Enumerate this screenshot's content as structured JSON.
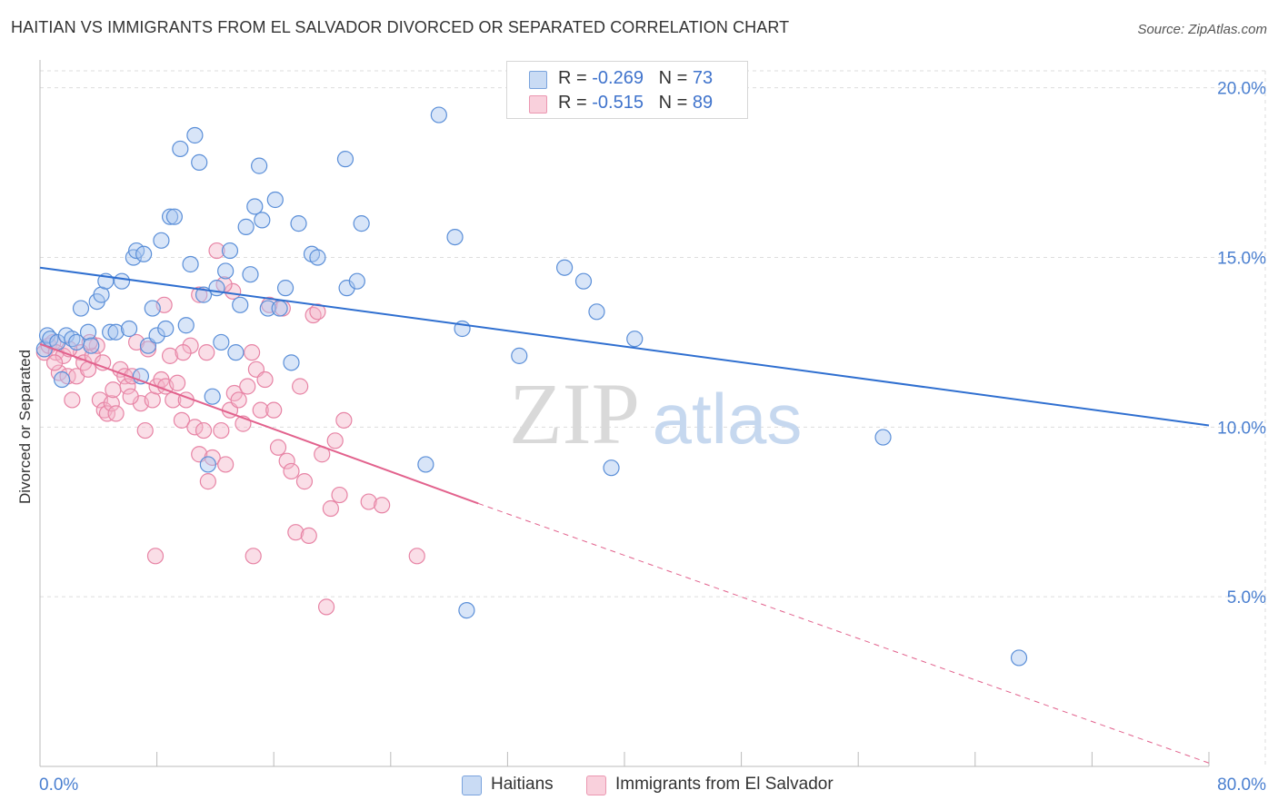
{
  "title": "HAITIAN VS IMMIGRANTS FROM EL SALVADOR DIVORCED OR SEPARATED CORRELATION CHART",
  "source": "Source: ZipAtlas.com",
  "watermark": {
    "zip": "ZIP",
    "atlas": "atlas"
  },
  "legend": {
    "rows": [
      {
        "r_label": "R = ",
        "r_value": "-0.269",
        "n_label": "N = ",
        "n_value": "73",
        "color": "#a9c6ef"
      },
      {
        "r_label": "R = ",
        "r_value": "-0.515",
        "n_label": "N = ",
        "n_value": "89",
        "color": "#f5b6c9"
      }
    ]
  },
  "colors": {
    "haitians_fill": "#a9c6ef",
    "haitians_stroke": "#5b8fd8",
    "haitians_line": "#2f6fd0",
    "elsalvador_fill": "#f5b6c9",
    "elsalvador_stroke": "#e784a5",
    "elsalvador_line": "#e2628d",
    "axis_tick_text": "#4a7fd0",
    "grid": "#dddddd"
  },
  "chart_data": {
    "type": "scatter",
    "title": "HAITIAN VS IMMIGRANTS FROM EL SALVADOR DIVORCED OR SEPARATED CORRELATION CHART",
    "xlabel": "",
    "ylabel": "Divorced or Separated",
    "xlim": [
      0,
      80
    ],
    "ylim": [
      0,
      20.5
    ],
    "x_tick_labels": [
      "0.0%",
      "80.0%"
    ],
    "y_ticks": [
      5,
      10,
      15,
      20
    ],
    "y_tick_labels": [
      "5.0%",
      "10.0%",
      "15.0%",
      "20.0%"
    ],
    "grid": true,
    "legend_placement": "top-center",
    "series": [
      {
        "name": "Haitians",
        "r": -0.269,
        "n": 73,
        "trend": {
          "x": [
            0,
            80
          ],
          "y": [
            14.7,
            10.05
          ]
        },
        "points": [
          [
            0.3,
            12.3
          ],
          [
            0.5,
            12.7
          ],
          [
            0.7,
            12.6
          ],
          [
            1.2,
            12.5
          ],
          [
            1.5,
            11.4
          ],
          [
            1.8,
            12.7
          ],
          [
            2.2,
            12.6
          ],
          [
            2.5,
            12.5
          ],
          [
            2.8,
            13.5
          ],
          [
            3.3,
            12.8
          ],
          [
            3.5,
            12.4
          ],
          [
            3.9,
            13.7
          ],
          [
            4.2,
            13.9
          ],
          [
            4.5,
            14.3
          ],
          [
            4.8,
            12.8
          ],
          [
            5.2,
            12.8
          ],
          [
            5.6,
            14.3
          ],
          [
            6.1,
            12.9
          ],
          [
            6.4,
            15.0
          ],
          [
            6.6,
            15.2
          ],
          [
            6.9,
            11.5
          ],
          [
            7.1,
            15.1
          ],
          [
            7.4,
            12.4
          ],
          [
            7.7,
            13.5
          ],
          [
            8.0,
            12.7
          ],
          [
            8.3,
            15.5
          ],
          [
            8.6,
            12.9
          ],
          [
            8.9,
            16.2
          ],
          [
            9.2,
            16.2
          ],
          [
            9.6,
            18.2
          ],
          [
            10.0,
            13.0
          ],
          [
            10.3,
            14.8
          ],
          [
            10.6,
            18.6
          ],
          [
            10.9,
            17.8
          ],
          [
            11.2,
            13.9
          ],
          [
            11.5,
            8.9
          ],
          [
            11.8,
            10.9
          ],
          [
            12.1,
            14.1
          ],
          [
            12.4,
            12.5
          ],
          [
            12.7,
            14.6
          ],
          [
            13.0,
            15.2
          ],
          [
            13.4,
            12.2
          ],
          [
            13.7,
            13.6
          ],
          [
            14.1,
            15.9
          ],
          [
            14.4,
            14.5
          ],
          [
            14.7,
            16.5
          ],
          [
            15.0,
            17.7
          ],
          [
            15.2,
            16.1
          ],
          [
            15.6,
            13.5
          ],
          [
            16.1,
            16.7
          ],
          [
            16.4,
            13.5
          ],
          [
            16.8,
            14.1
          ],
          [
            17.2,
            11.9
          ],
          [
            17.7,
            16.0
          ],
          [
            18.6,
            15.1
          ],
          [
            19.0,
            15.0
          ],
          [
            21.0,
            14.1
          ],
          [
            21.7,
            14.3
          ],
          [
            20.9,
            17.9
          ],
          [
            22.0,
            16.0
          ],
          [
            26.4,
            8.9
          ],
          [
            27.3,
            19.2
          ],
          [
            28.4,
            15.6
          ],
          [
            28.9,
            12.9
          ],
          [
            29.2,
            4.6
          ],
          [
            32.8,
            12.1
          ],
          [
            35.9,
            14.7
          ],
          [
            37.2,
            14.3
          ],
          [
            38.1,
            13.4
          ],
          [
            39.1,
            8.8
          ],
          [
            40.7,
            12.6
          ],
          [
            57.7,
            9.7
          ],
          [
            67.0,
            3.2
          ]
        ]
      },
      {
        "name": "Immigrants from El Salvador",
        "r": -0.515,
        "n": 89,
        "trend": {
          "x": [
            0,
            30.0
          ],
          "y": [
            12.45,
            7.75
          ]
        },
        "trend_dashed": {
          "x": [
            30.0,
            80
          ],
          "y": [
            7.75,
            0.1
          ]
        },
        "points": [
          [
            0.3,
            12.2
          ],
          [
            0.6,
            12.4
          ],
          [
            0.9,
            12.5
          ],
          [
            1.1,
            12.2
          ],
          [
            1.3,
            11.6
          ],
          [
            1.6,
            12.1
          ],
          [
            1.9,
            11.5
          ],
          [
            2.2,
            10.8
          ],
          [
            2.5,
            11.5
          ],
          [
            2.8,
            12.2
          ],
          [
            3.0,
            11.9
          ],
          [
            3.3,
            11.7
          ],
          [
            3.6,
            12.1
          ],
          [
            3.9,
            12.4
          ],
          [
            4.1,
            10.8
          ],
          [
            4.4,
            10.5
          ],
          [
            4.6,
            10.4
          ],
          [
            4.9,
            10.7
          ],
          [
            5.2,
            10.4
          ],
          [
            5.5,
            11.7
          ],
          [
            5.8,
            11.5
          ],
          [
            6.0,
            11.2
          ],
          [
            6.3,
            11.5
          ],
          [
            6.6,
            12.5
          ],
          [
            6.9,
            10.7
          ],
          [
            7.2,
            9.9
          ],
          [
            7.4,
            12.3
          ],
          [
            7.7,
            10.8
          ],
          [
            8.0,
            11.2
          ],
          [
            8.3,
            11.4
          ],
          [
            8.6,
            11.2
          ],
          [
            8.9,
            12.1
          ],
          [
            9.1,
            10.8
          ],
          [
            9.4,
            11.3
          ],
          [
            9.7,
            10.2
          ],
          [
            10.0,
            10.8
          ],
          [
            10.3,
            12.4
          ],
          [
            10.6,
            10.0
          ],
          [
            10.9,
            9.2
          ],
          [
            11.2,
            9.9
          ],
          [
            11.5,
            8.4
          ],
          [
            11.8,
            9.1
          ],
          [
            12.1,
            15.2
          ],
          [
            12.4,
            9.9
          ],
          [
            12.7,
            8.9
          ],
          [
            13.0,
            10.5
          ],
          [
            13.3,
            11.0
          ],
          [
            13.6,
            10.8
          ],
          [
            13.9,
            10.1
          ],
          [
            14.2,
            11.2
          ],
          [
            14.5,
            12.2
          ],
          [
            14.8,
            11.7
          ],
          [
            15.1,
            10.5
          ],
          [
            15.4,
            11.4
          ],
          [
            15.7,
            13.6
          ],
          [
            16.0,
            10.5
          ],
          [
            16.3,
            9.4
          ],
          [
            16.6,
            13.5
          ],
          [
            16.9,
            9.0
          ],
          [
            17.2,
            8.7
          ],
          [
            17.5,
            6.9
          ],
          [
            17.8,
            11.2
          ],
          [
            18.1,
            8.4
          ],
          [
            18.4,
            6.8
          ],
          [
            18.7,
            13.3
          ],
          [
            19.0,
            13.4
          ],
          [
            19.3,
            9.2
          ],
          [
            19.6,
            4.7
          ],
          [
            19.9,
            7.6
          ],
          [
            20.2,
            9.6
          ],
          [
            20.5,
            8.0
          ],
          [
            20.8,
            10.2
          ],
          [
            22.5,
            7.8
          ],
          [
            23.4,
            7.7
          ],
          [
            13.2,
            14.0
          ],
          [
            12.6,
            14.2
          ],
          [
            11.4,
            12.2
          ],
          [
            10.9,
            13.9
          ],
          [
            9.8,
            12.2
          ],
          [
            8.5,
            13.6
          ],
          [
            7.9,
            6.2
          ],
          [
            14.6,
            6.2
          ],
          [
            25.8,
            6.2
          ],
          [
            6.2,
            10.9
          ],
          [
            5.0,
            11.1
          ],
          [
            4.3,
            11.9
          ],
          [
            3.4,
            12.5
          ],
          [
            2.0,
            12.3
          ],
          [
            1.0,
            11.9
          ]
        ]
      }
    ]
  },
  "bottom_legend": {
    "items": [
      {
        "label": "Haitians"
      },
      {
        "label": "Immigrants from El Salvador"
      }
    ]
  }
}
